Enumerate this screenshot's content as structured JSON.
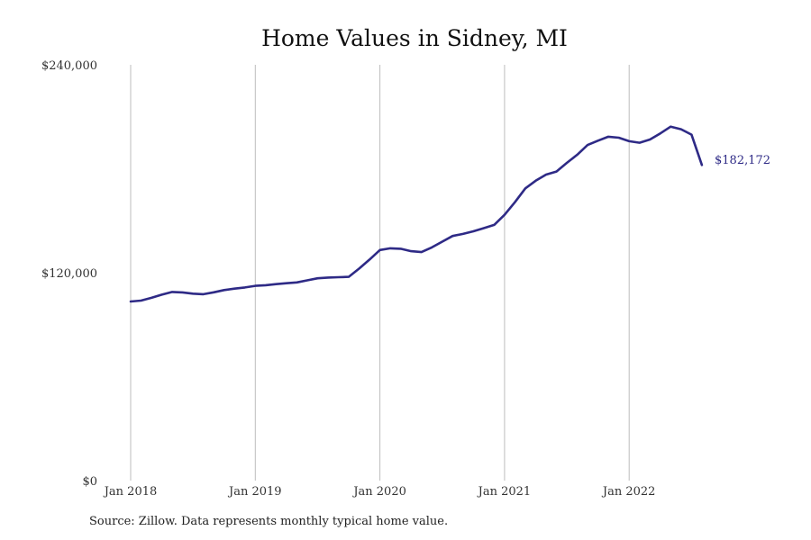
{
  "source_note": "Source: Zillow. Data represents monthly typical home value.",
  "colors": {
    "line": "#2e2a86",
    "grid": "#bdbdbd",
    "text": "#333333"
  },
  "chart_data": {
    "type": "line",
    "title": "Home Values in Sidney, MI",
    "xlabel": "",
    "ylabel": "",
    "ylim": [
      0,
      240000
    ],
    "ytick_values": [
      0,
      120000,
      240000
    ],
    "ytick_labels": [
      "$0",
      "$120,000",
      "$240,000"
    ],
    "xtick_labels": [
      "Jan 2018",
      "Jan 2019",
      "Jan 2020",
      "Jan 2021",
      "Jan 2022"
    ],
    "grid": {
      "vertical": true,
      "horizontal": false
    },
    "end_label": "$182,172",
    "series": [
      {
        "name": "",
        "x": [
          "2018-01",
          "2018-02",
          "2018-03",
          "2018-04",
          "2018-05",
          "2018-06",
          "2018-07",
          "2018-08",
          "2018-09",
          "2018-10",
          "2018-11",
          "2018-12",
          "2019-01",
          "2019-02",
          "2019-03",
          "2019-04",
          "2019-05",
          "2019-06",
          "2019-07",
          "2019-08",
          "2019-09",
          "2019-10",
          "2019-11",
          "2019-12",
          "2020-01",
          "2020-02",
          "2020-03",
          "2020-04",
          "2020-05",
          "2020-06",
          "2020-07",
          "2020-08",
          "2020-09",
          "2020-10",
          "2020-11",
          "2020-12",
          "2021-01",
          "2021-02",
          "2021-03",
          "2021-04",
          "2021-05",
          "2021-06",
          "2021-07",
          "2021-08",
          "2021-09",
          "2021-10",
          "2021-11",
          "2021-12",
          "2022-01",
          "2022-02",
          "2022-03",
          "2022-04",
          "2022-05",
          "2022-06",
          "2022-07",
          "2022-08"
        ],
        "values": [
          103400,
          103900,
          105500,
          107300,
          108900,
          108600,
          107900,
          107600,
          108700,
          110000,
          110800,
          111500,
          112400,
          112800,
          113400,
          113900,
          114400,
          115600,
          116800,
          117200,
          117400,
          117600,
          122400,
          127600,
          133100,
          134100,
          133800,
          132400,
          131900,
          134600,
          137900,
          141200,
          142400,
          143900,
          145700,
          147600,
          153400,
          160700,
          168700,
          173100,
          176600,
          178400,
          183400,
          188100,
          193700,
          196200,
          198500,
          197900,
          195900,
          195000,
          196900,
          200400,
          204300,
          202800,
          199700,
          182172
        ]
      }
    ]
  }
}
